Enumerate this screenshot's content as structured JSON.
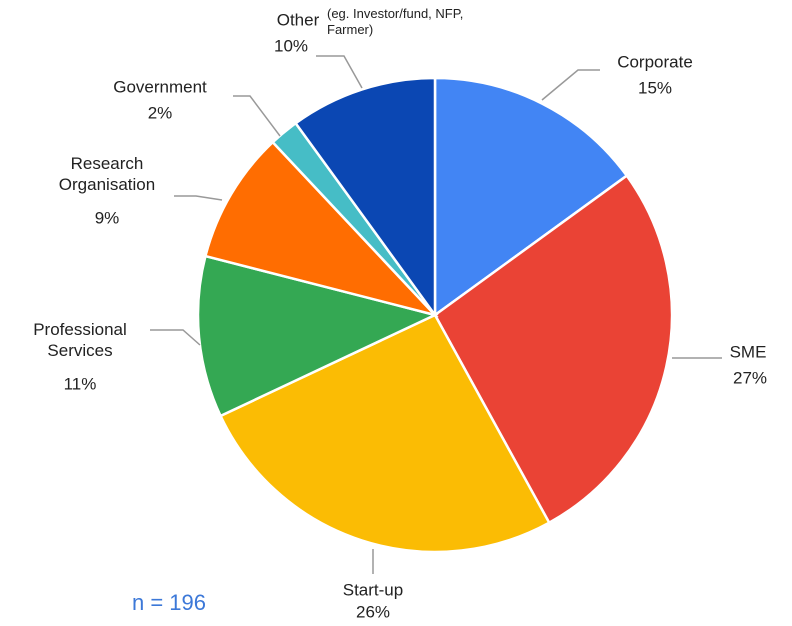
{
  "chart_data": {
    "type": "pie",
    "categories": [
      "Corporate",
      "SME",
      "Start-up",
      "Professional Services",
      "Research Organisation",
      "Government",
      "Other"
    ],
    "values": [
      15,
      27,
      26,
      11,
      9,
      2,
      10
    ],
    "value_labels": [
      "15%",
      "27%",
      "26%",
      "11%",
      "9%",
      "2%",
      "10%"
    ],
    "colors": [
      "#4285f4",
      "#ea4335",
      "#fbbc04",
      "#34a853",
      "#ff6d01",
      "#46bdc6",
      "#0b47b3"
    ],
    "annotations": [
      "(eg. Investor/fund, NFP, Farmer)",
      "n = 196"
    ]
  }
}
